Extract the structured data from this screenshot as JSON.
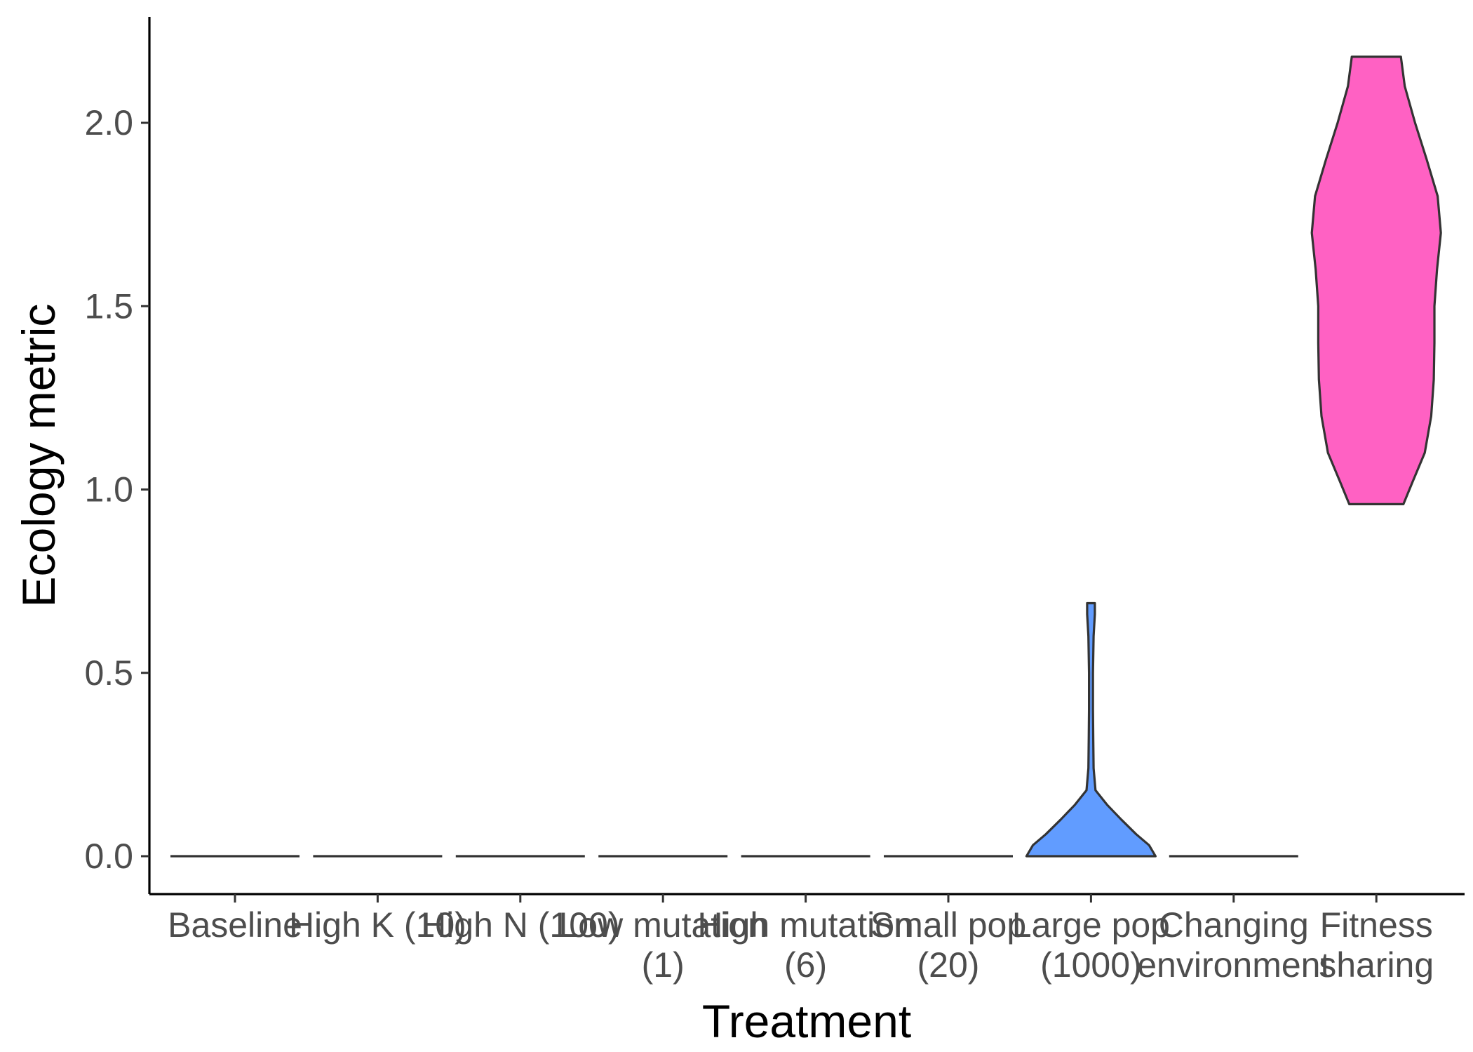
{
  "chart_data": {
    "type": "violin",
    "xlabel": "Treatment",
    "ylabel": "Ecology metric",
    "ylim": [
      -0.1,
      2.28
    ],
    "yticks": [
      0.0,
      0.5,
      1.0,
      1.5,
      2.0
    ],
    "ytick_labels": [
      "0.0",
      "0.5",
      "1.0",
      "1.5",
      "2.0"
    ],
    "grid": false,
    "legend": "none",
    "categories": [
      {
        "label": [
          "Baseline"
        ],
        "fill": "none",
        "min": 0,
        "max": 0,
        "density": []
      },
      {
        "label": [
          "High K (10)"
        ],
        "fill": "none",
        "min": 0,
        "max": 0,
        "density": []
      },
      {
        "label": [
          "High N (100)"
        ],
        "fill": "none",
        "min": 0,
        "max": 0,
        "density": []
      },
      {
        "label": [
          "Low mutation",
          "(1)"
        ],
        "fill": "none",
        "min": 0,
        "max": 0,
        "density": []
      },
      {
        "label": [
          "High mutation",
          "(6)"
        ],
        "fill": "none",
        "min": 0,
        "max": 0,
        "density": []
      },
      {
        "label": [
          "Small pop",
          "(20)"
        ],
        "fill": "none",
        "min": 0,
        "max": 0,
        "density": []
      },
      {
        "label": [
          "Large pop",
          "(1000)"
        ],
        "fill": "#619CFF",
        "min": 0,
        "max": 0.69,
        "density": [
          [
            0,
            1.0
          ],
          [
            0.03,
            0.9
          ],
          [
            0.06,
            0.7
          ],
          [
            0.1,
            0.47
          ],
          [
            0.14,
            0.25
          ],
          [
            0.18,
            0.07
          ],
          [
            0.24,
            0.04
          ],
          [
            0.32,
            0.035
          ],
          [
            0.4,
            0.03
          ],
          [
            0.5,
            0.03
          ],
          [
            0.6,
            0.04
          ],
          [
            0.66,
            0.06
          ],
          [
            0.69,
            0.06
          ]
        ]
      },
      {
        "label": [
          "Changing",
          "environment"
        ],
        "fill": "none",
        "min": 0,
        "max": 0,
        "density": []
      },
      {
        "label": [
          "Fitness",
          "sharing"
        ],
        "fill": "#FF61C3",
        "min": 0.96,
        "max": 2.18,
        "density": [
          [
            0.96,
            0.42
          ],
          [
            1.02,
            0.56
          ],
          [
            1.1,
            0.75
          ],
          [
            1.2,
            0.85
          ],
          [
            1.3,
            0.89
          ],
          [
            1.4,
            0.9
          ],
          [
            1.5,
            0.9
          ],
          [
            1.6,
            0.94
          ],
          [
            1.7,
            1.0
          ],
          [
            1.8,
            0.95
          ],
          [
            1.9,
            0.78
          ],
          [
            2.0,
            0.6
          ],
          [
            2.1,
            0.44
          ],
          [
            2.18,
            0.38
          ]
        ]
      }
    ]
  }
}
